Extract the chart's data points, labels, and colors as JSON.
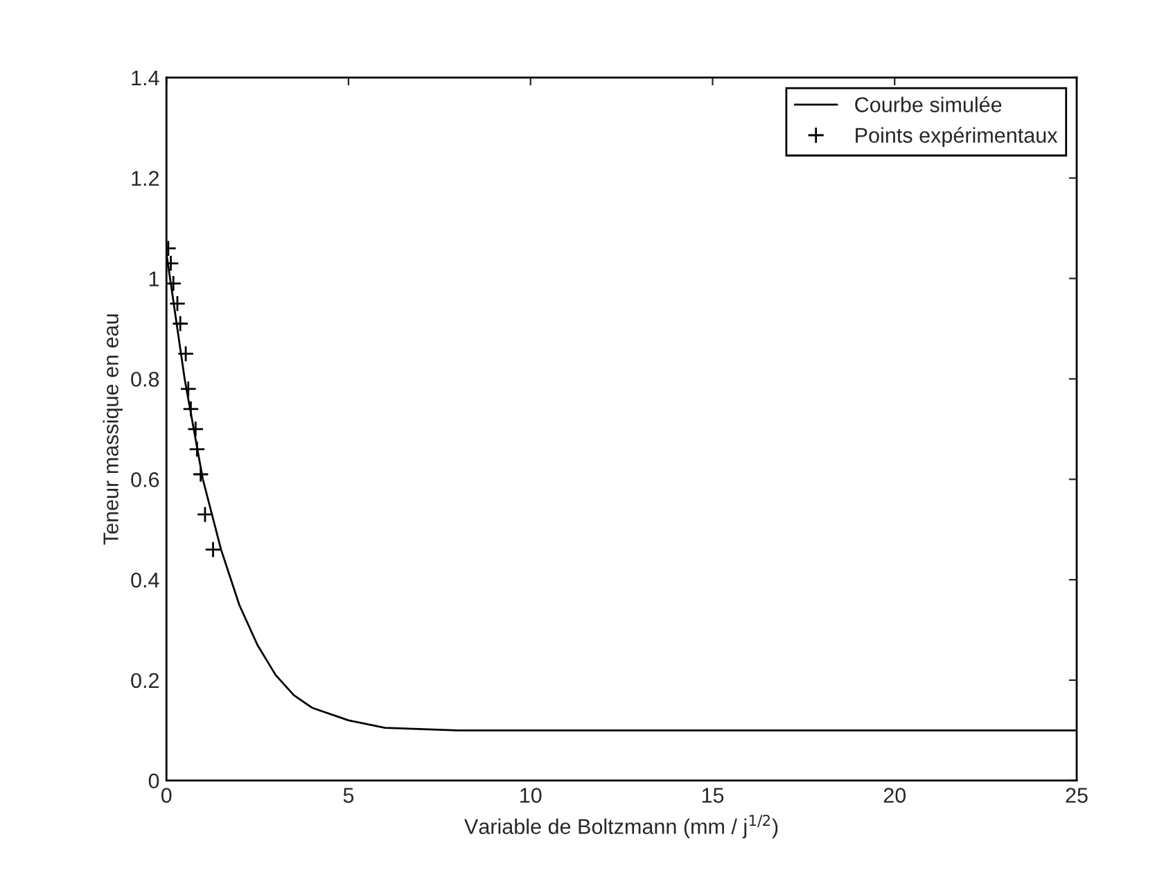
{
  "chart_data": {
    "type": "line",
    "xlabel": "Variable de Boltzmann (mm / j$^{1/2}$)",
    "ylabel": "Teneur massique en eau",
    "xlim": [
      0,
      25
    ],
    "xticks": [
      0,
      5,
      10,
      15,
      20,
      25
    ],
    "ylim": [
      0,
      1.4
    ],
    "yticks": [
      0,
      0.2,
      0.4,
      0.6,
      0.8,
      1,
      1.2,
      1.4
    ],
    "grid": false,
    "legend": "top right",
    "series": [
      {
        "name": "Courbe simulée",
        "color": "#000000",
        "line_style": "solid",
        "marker": "none",
        "x": [
          0,
          0.5,
          1,
          1.5,
          2,
          2.5,
          3,
          3.5,
          4,
          5,
          6,
          8,
          25
        ],
        "values": [
          1.05,
          0.8,
          0.6,
          0.46,
          0.35,
          0.27,
          0.21,
          0.17,
          0.145,
          0.12,
          0.105,
          0.1,
          0.1
        ]
      },
      {
        "name": "Points expérimentaux",
        "type": "scatter",
        "color": "#000000",
        "marker": "cross",
        "x": [
          0.05,
          0.12,
          0.19,
          0.3,
          0.38,
          0.53,
          0.6,
          0.67,
          0.8,
          0.84,
          0.94,
          1.06,
          1.28
        ],
        "values": [
          1.06,
          1.03,
          0.99,
          0.95,
          0.91,
          0.85,
          0.78,
          0.74,
          0.7,
          0.66,
          0.61,
          0.53,
          0.46
        ]
      }
    ]
  }
}
